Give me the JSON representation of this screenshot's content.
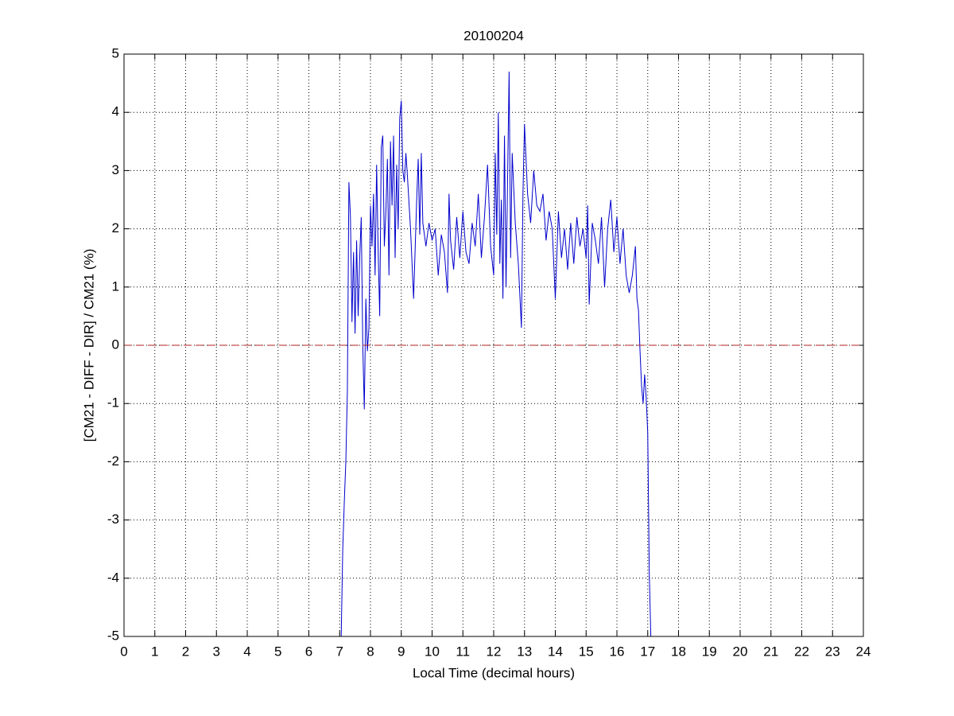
{
  "chart_data": {
    "type": "line",
    "title": "20100204",
    "xlabel": "Local Time (decimal hours)",
    "ylabel": "[CM21 - DIFF - DIR] / CM21 (%)",
    "xlim": [
      0,
      24
    ],
    "ylim": [
      -5,
      5
    ],
    "xticks": [
      0,
      1,
      2,
      3,
      4,
      5,
      6,
      7,
      8,
      9,
      10,
      11,
      12,
      13,
      14,
      15,
      16,
      17,
      18,
      19,
      20,
      21,
      22,
      23,
      24
    ],
    "yticks": [
      -5,
      -4,
      -3,
      -2,
      -1,
      0,
      1,
      2,
      3,
      4,
      5
    ],
    "grid": true,
    "series": [
      {
        "color": "#0000cc",
        "linestyle": "solid",
        "x": [
          7.05,
          7.1,
          7.15,
          7.2,
          7.25,
          7.3,
          7.35,
          7.4,
          7.45,
          7.5,
          7.55,
          7.6,
          7.65,
          7.7,
          7.75,
          7.8,
          7.85,
          7.9,
          7.95,
          8.0,
          8.05,
          8.1,
          8.15,
          8.2,
          8.25,
          8.3,
          8.35,
          8.4,
          8.45,
          8.5,
          8.55,
          8.6,
          8.65,
          8.7,
          8.75,
          8.8,
          8.85,
          8.9,
          8.95,
          9.0,
          9.05,
          9.1,
          9.15,
          9.2,
          9.3,
          9.4,
          9.5,
          9.55,
          9.6,
          9.65,
          9.7,
          9.8,
          9.9,
          10.0,
          10.1,
          10.2,
          10.3,
          10.4,
          10.5,
          10.55,
          10.6,
          10.7,
          10.8,
          10.9,
          11.0,
          11.1,
          11.2,
          11.3,
          11.4,
          11.5,
          11.6,
          11.7,
          11.8,
          11.9,
          12.0,
          12.05,
          12.1,
          12.15,
          12.2,
          12.25,
          12.3,
          12.35,
          12.4,
          12.45,
          12.5,
          12.55,
          12.6,
          12.7,
          12.8,
          12.9,
          12.95,
          13.0,
          13.1,
          13.2,
          13.3,
          13.4,
          13.5,
          13.6,
          13.7,
          13.8,
          13.9,
          14.0,
          14.1,
          14.2,
          14.3,
          14.4,
          14.5,
          14.6,
          14.7,
          14.8,
          14.9,
          15.0,
          15.05,
          15.1,
          15.2,
          15.3,
          15.4,
          15.5,
          15.6,
          15.7,
          15.8,
          15.9,
          16.0,
          16.1,
          16.2,
          16.3,
          16.4,
          16.5,
          16.6,
          16.65,
          16.7,
          16.75,
          16.8,
          16.85,
          16.9,
          16.95,
          17.0,
          17.05,
          17.1
        ],
        "values": [
          -5,
          -3.5,
          -2.7,
          -2.0,
          -0.8,
          2.8,
          2.2,
          0.4,
          1.6,
          0.2,
          1.8,
          0.5,
          1.5,
          2.2,
          0.0,
          -1.1,
          0.8,
          -0.1,
          0.3,
          2.4,
          1.7,
          2.6,
          1.2,
          3.1,
          1.6,
          0.5,
          3.4,
          3.6,
          1.7,
          2.3,
          3.2,
          1.2,
          3.5,
          2.4,
          3.6,
          1.5,
          3.1,
          2.0,
          3.9,
          4.2,
          3.0,
          2.8,
          3.3,
          2.9,
          2.0,
          0.8,
          2.5,
          3.2,
          1.9,
          3.3,
          2.1,
          1.7,
          2.1,
          1.8,
          2.0,
          1.2,
          1.9,
          1.6,
          0.9,
          2.6,
          1.8,
          1.3,
          2.2,
          1.5,
          2.3,
          1.6,
          1.4,
          2.1,
          1.7,
          2.6,
          1.5,
          2.2,
          3.1,
          1.7,
          1.2,
          3.3,
          1.9,
          4.0,
          1.4,
          2.5,
          0.8,
          3.6,
          1.0,
          2.8,
          4.7,
          1.5,
          3.3,
          2.1,
          1.4,
          0.3,
          2.6,
          3.8,
          2.6,
          2.1,
          3.0,
          2.4,
          2.3,
          2.6,
          1.8,
          2.3,
          2.0,
          0.8,
          2.3,
          1.5,
          2.0,
          1.3,
          2.1,
          1.4,
          2.2,
          1.7,
          2.0,
          1.5,
          2.4,
          0.7,
          2.1,
          1.8,
          1.4,
          2.2,
          1.0,
          2.0,
          2.5,
          1.6,
          2.2,
          1.4,
          2.0,
          1.2,
          0.9,
          1.2,
          1.7,
          0.8,
          0.6,
          -0.1,
          -0.7,
          -1.0,
          -0.5,
          -0.9,
          -1.5,
          -3.9,
          -5
        ]
      },
      {
        "color": "#b22222",
        "linestyle": "dashed",
        "x": [
          0,
          24
        ],
        "values": [
          0,
          0
        ]
      }
    ]
  }
}
